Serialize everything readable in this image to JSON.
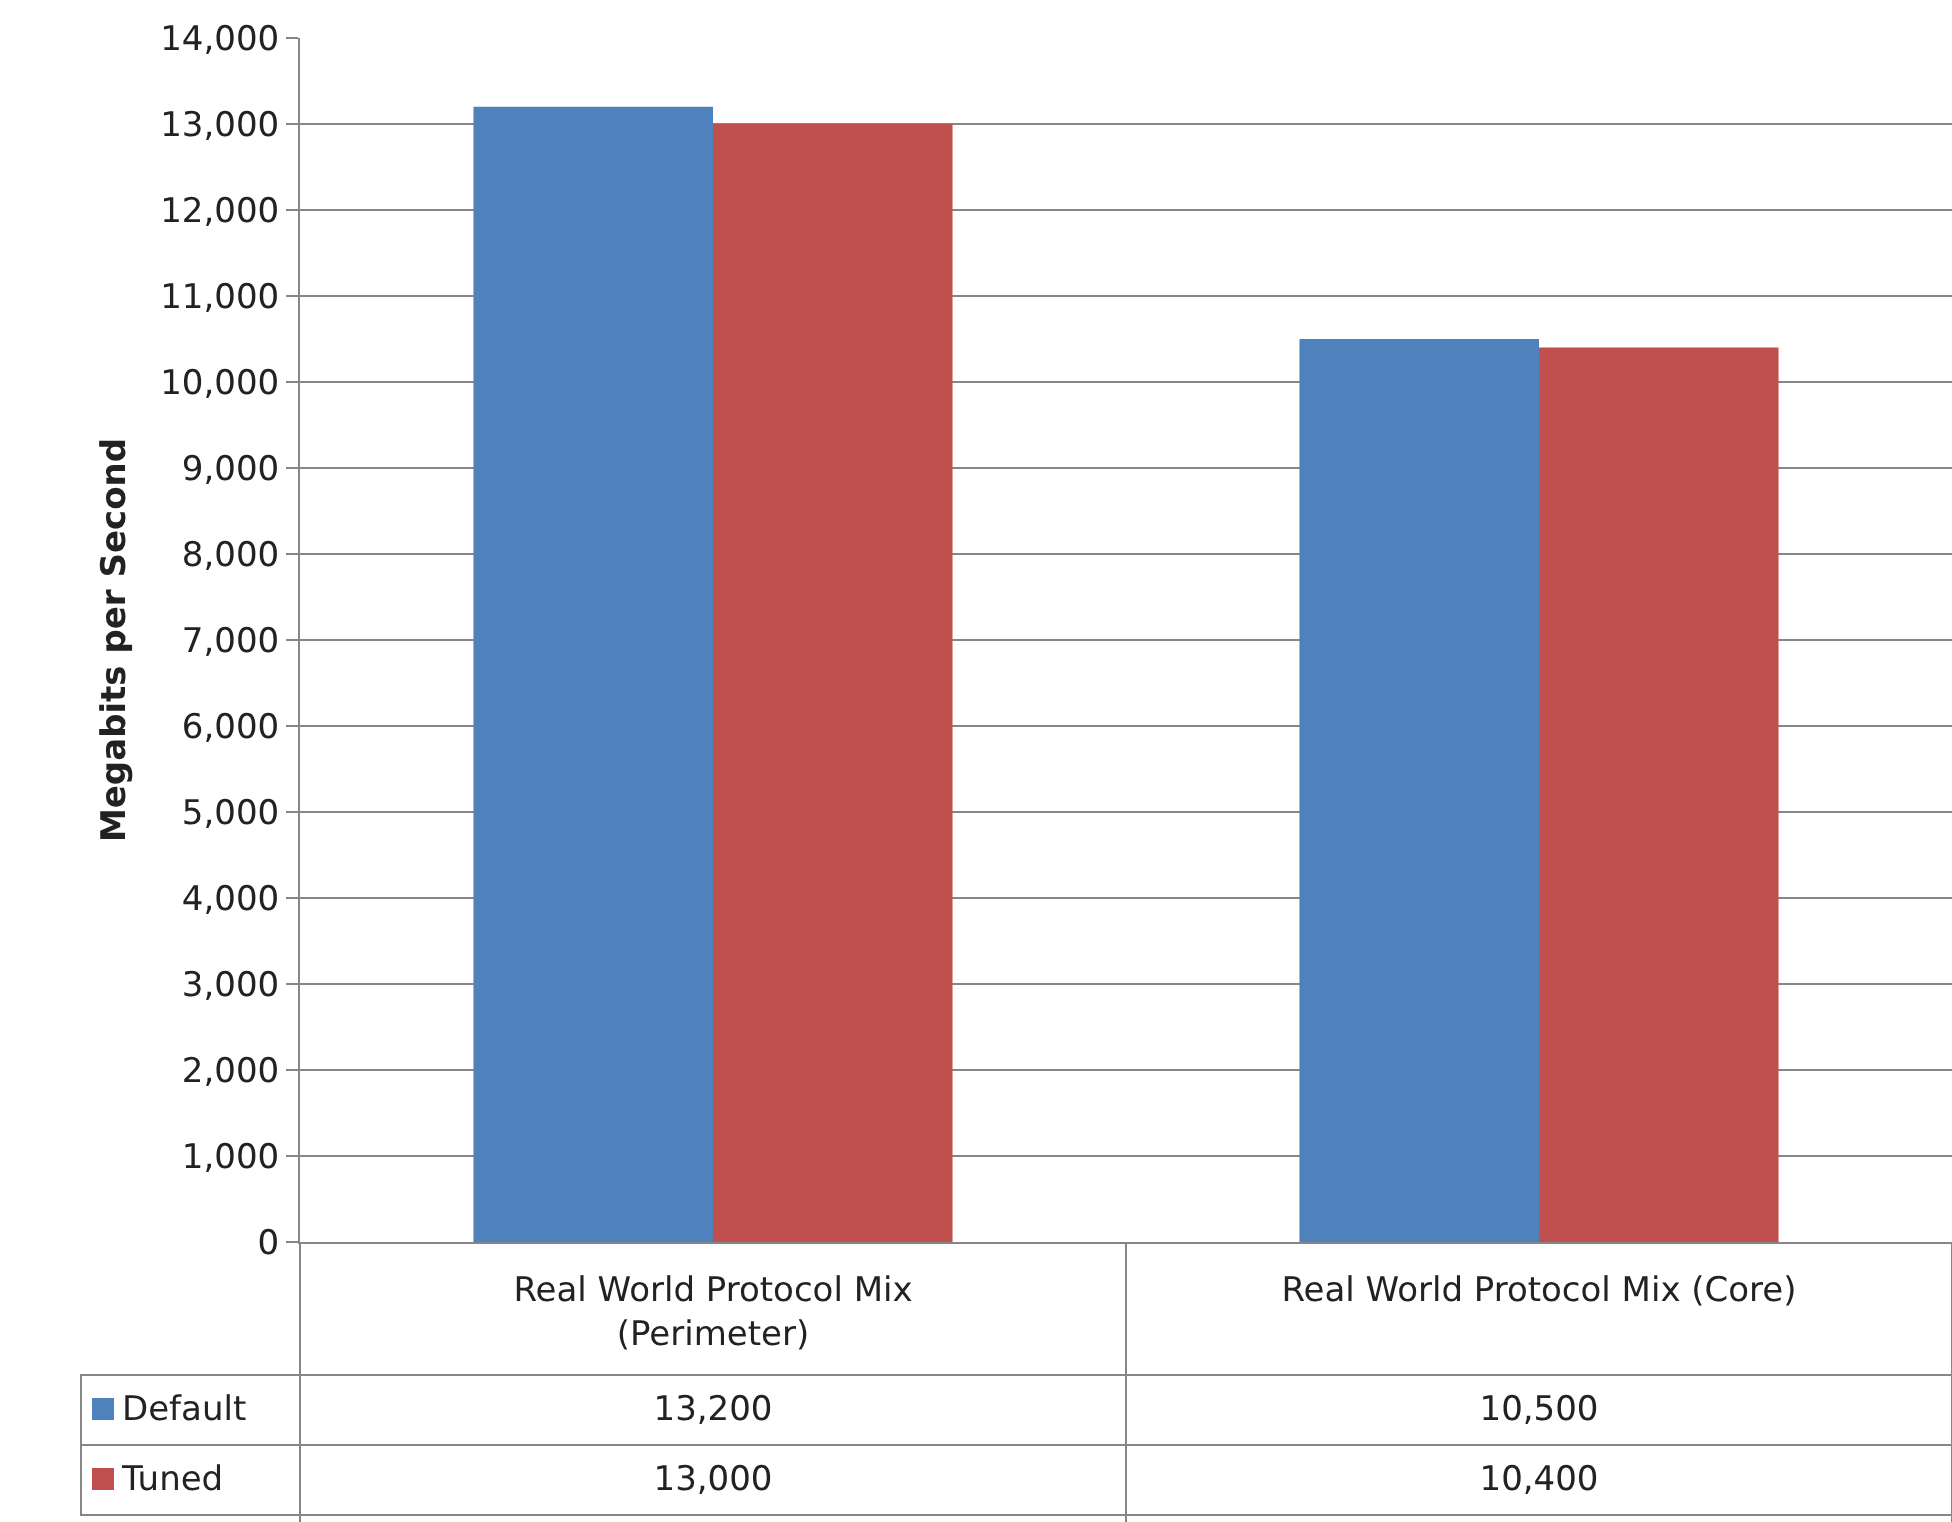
{
  "chart_data": {
    "type": "bar",
    "ylabel": "Megabits per Second",
    "categories": [
      "Real World Protocol Mix (Perimeter)",
      "Real World Protocol Mix (Core)"
    ],
    "series": [
      {
        "name": "Default",
        "color": "#4f81bd",
        "values": [
          13200,
          10500
        ],
        "value_labels": [
          "13,200",
          "10,500"
        ]
      },
      {
        "name": "Tuned",
        "color": "#c0504d",
        "values": [
          13000,
          10400
        ],
        "value_labels": [
          "13,000",
          "10,400"
        ]
      }
    ],
    "ylim": [
      0,
      14000
    ],
    "yticks": [
      {
        "value": 0,
        "label": "0"
      },
      {
        "value": 1000,
        "label": "1,000"
      },
      {
        "value": 2000,
        "label": "2,000"
      },
      {
        "value": 3000,
        "label": "3,000"
      },
      {
        "value": 4000,
        "label": "4,000"
      },
      {
        "value": 5000,
        "label": "5,000"
      },
      {
        "value": 6000,
        "label": "6,000"
      },
      {
        "value": 7000,
        "label": "7,000"
      },
      {
        "value": 8000,
        "label": "8,000"
      },
      {
        "value": 9000,
        "label": "9,000"
      },
      {
        "value": 10000,
        "label": "10,000"
      },
      {
        "value": 11000,
        "label": "11,000"
      },
      {
        "value": 12000,
        "label": "12,000"
      },
      {
        "value": 13000,
        "label": "13,000"
      },
      {
        "value": 14000,
        "label": "14,000"
      }
    ],
    "grid": "y",
    "legend": "bottom left"
  }
}
